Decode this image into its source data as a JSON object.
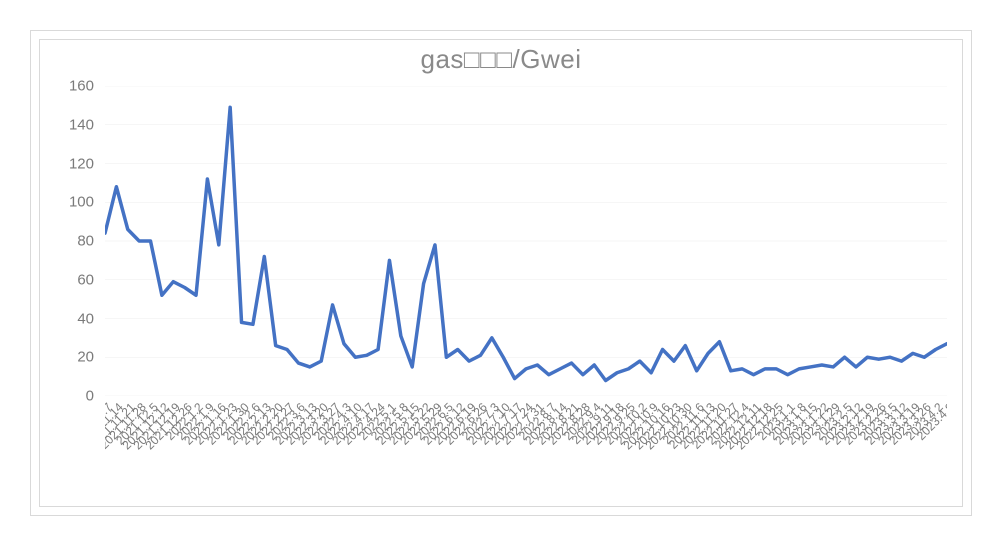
{
  "chart": {
    "type": "line",
    "title": "gas□□□/Gwei",
    "title_fontsize": 26,
    "title_color": "#8a8a8a",
    "background_color": "#ffffff",
    "outer_border_color": "#d9d9d9",
    "inner_border_color": "#d9d9d9",
    "grid_color": "#d9d9d9",
    "axis_color": "#d9d9d9",
    "tick_label_color": "#7a7a7a",
    "series_color": "#4472c4",
    "line_width": 3.5,
    "ylim": [
      0,
      160
    ],
    "ytick_step": 20,
    "yticks": [
      0,
      20,
      40,
      60,
      80,
      100,
      120,
      140,
      160
    ],
    "categories": [
      "2021.11.7",
      "2021.11.14",
      "2021.11.21",
      "2021.11.28",
      "2021.12.5",
      "2021.12.12",
      "2021.12.19",
      "2021.12.26",
      "2022.1.2",
      "2022.1.9",
      "2022.1.16",
      "2022.1.23",
      "2022.1.30",
      "2022.2.6",
      "2022.2.13",
      "2022.2.20",
      "2022.2.27",
      "2022.3.6",
      "2022.3.13",
      "2022.3.20",
      "2022.3.27",
      "2022.4.3",
      "2022.4.10",
      "2022.4.17",
      "2022.4.24",
      "2022.5.1",
      "2022.5.8",
      "2022.5.15",
      "2022.5.22",
      "2022.5.29",
      "2022.6.5",
      "2022.6.12",
      "2022.6.19",
      "2022.6.26",
      "2022.7.3",
      "2022.7.10",
      "2022.7.17",
      "2022.7.24",
      "2022.7.31",
      "2022.8.7",
      "2022.8.14",
      "2022.8.21",
      "2022.8.28",
      "2022.9.4",
      "2022.9.11",
      "2022.9.18",
      "2022.9.25",
      "2022.10.2",
      "2022.10.9",
      "2022.10.16",
      "2022.10.23",
      "2022.10.30",
      "2022.11.6",
      "2022.11.13",
      "2022.11.20",
      "2022.11.27",
      "2022.12.4",
      "2022.12.11",
      "2022.12.18",
      "2022.12.25",
      "2023.1.1",
      "2023.1.8",
      "2023.1.15",
      "2023.1.22",
      "2023.1.29",
      "2023.2.5",
      "2023.2.12",
      "2023.2.19",
      "2023.2.26",
      "2023.3.5",
      "2023.3.12",
      "2023.3.19",
      "2023.3.26",
      "2023.4.2",
      "2023.4.9"
    ],
    "values": [
      84,
      108,
      86,
      80,
      80,
      52,
      59,
      56,
      52,
      112,
      78,
      149,
      38,
      37,
      72,
      26,
      24,
      17,
      15,
      18,
      47,
      27,
      20,
      21,
      24,
      70,
      31,
      15,
      58,
      78,
      20,
      24,
      18,
      21,
      30,
      20,
      9,
      14,
      16,
      11,
      14,
      17,
      11,
      16,
      8,
      12,
      14,
      18,
      12,
      24,
      18,
      26,
      13,
      22,
      28,
      13,
      14,
      11,
      14,
      14,
      11,
      14,
      15,
      16,
      15,
      20,
      15,
      20,
      19,
      20,
      18,
      22,
      20,
      24,
      27
    ]
  }
}
